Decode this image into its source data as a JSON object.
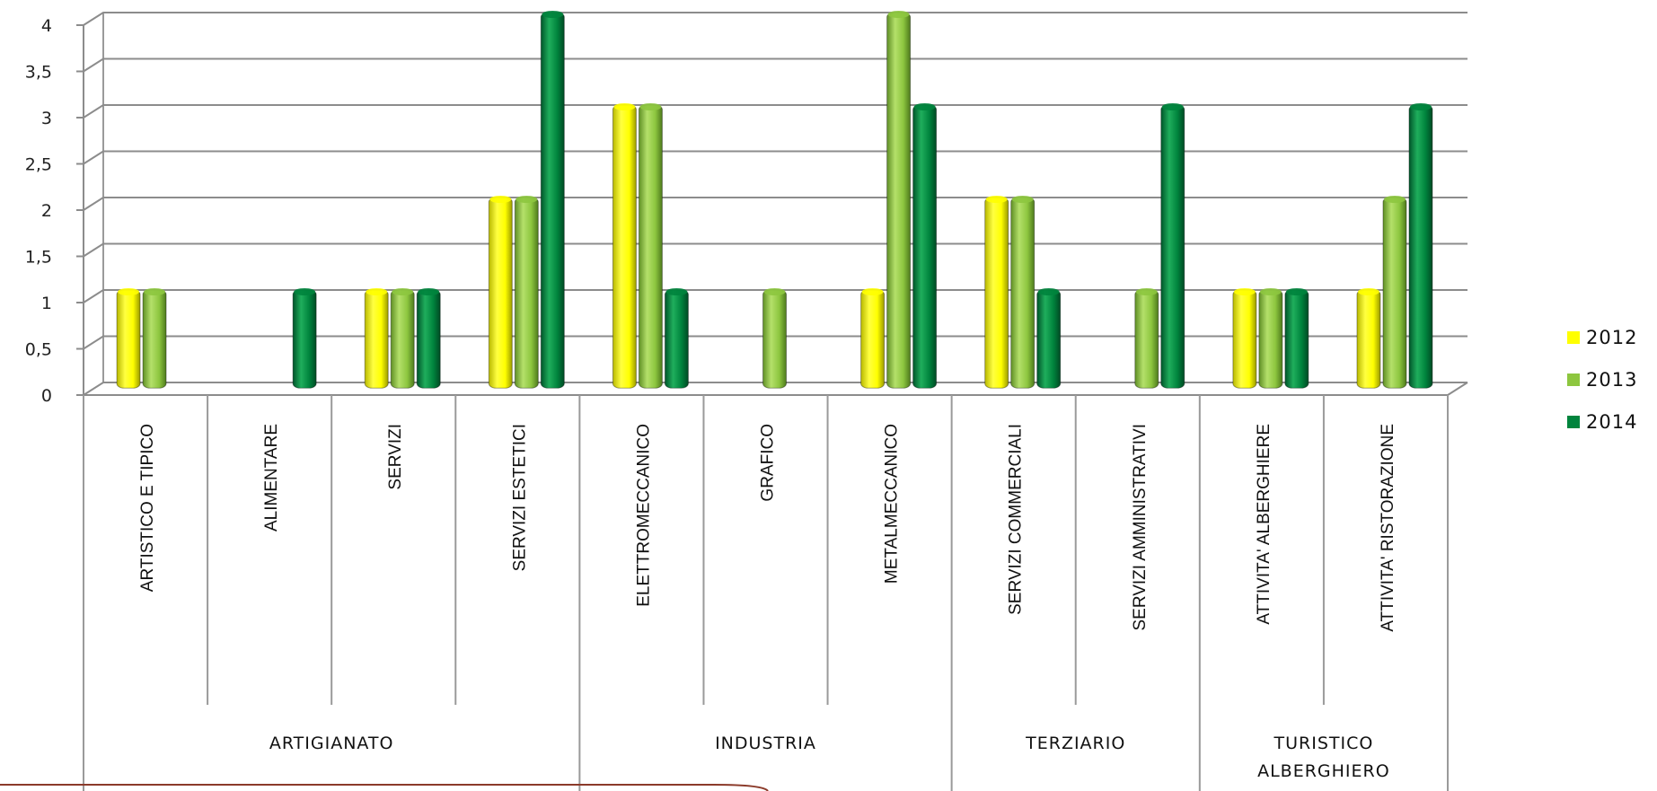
{
  "chart_data": {
    "type": "bar",
    "y_ticks": [
      "0",
      "0,5",
      "1",
      "1,5",
      "2",
      "2,5",
      "3",
      "3,5",
      "4"
    ],
    "ylim": [
      0,
      4
    ],
    "grid": true,
    "legend_position": "right",
    "categories": [
      "ARTISTICO E TIPICO",
      "ALIMENTARE",
      "SERVIZI",
      "SERVIZI ESTETICI",
      "ELETTROMECCANICO",
      "GRAFICO",
      "METALMECCANICO",
      "SERVIZI COMMERCIALI",
      "SERVIZI AMMINISTRATIVI",
      "ATTIVITA' ALBERGHIERE",
      "ATTIVITA' RISTORAZIONE"
    ],
    "groups": [
      {
        "label": "ARTIGIANATO",
        "span": 4
      },
      {
        "label": "INDUSTRIA",
        "span": 3
      },
      {
        "label": "TERZIARIO",
        "span": 2
      },
      {
        "label_lines": [
          "TURISTICO",
          "ALBERGHIERO"
        ],
        "span": 2
      }
    ],
    "series": [
      {
        "name": "2012",
        "color": "#FFFF00",
        "values": [
          1,
          0,
          1,
          2,
          3,
          0,
          1,
          2,
          0,
          1,
          1
        ]
      },
      {
        "name": "2013",
        "color": "#8DC63F",
        "values": [
          1,
          0,
          1,
          2,
          3,
          1,
          4,
          2,
          1,
          1,
          2
        ]
      },
      {
        "name": "2014",
        "color": "#00843D",
        "values": [
          0,
          1,
          1,
          4,
          1,
          0,
          3,
          1,
          3,
          1,
          3
        ]
      }
    ]
  }
}
